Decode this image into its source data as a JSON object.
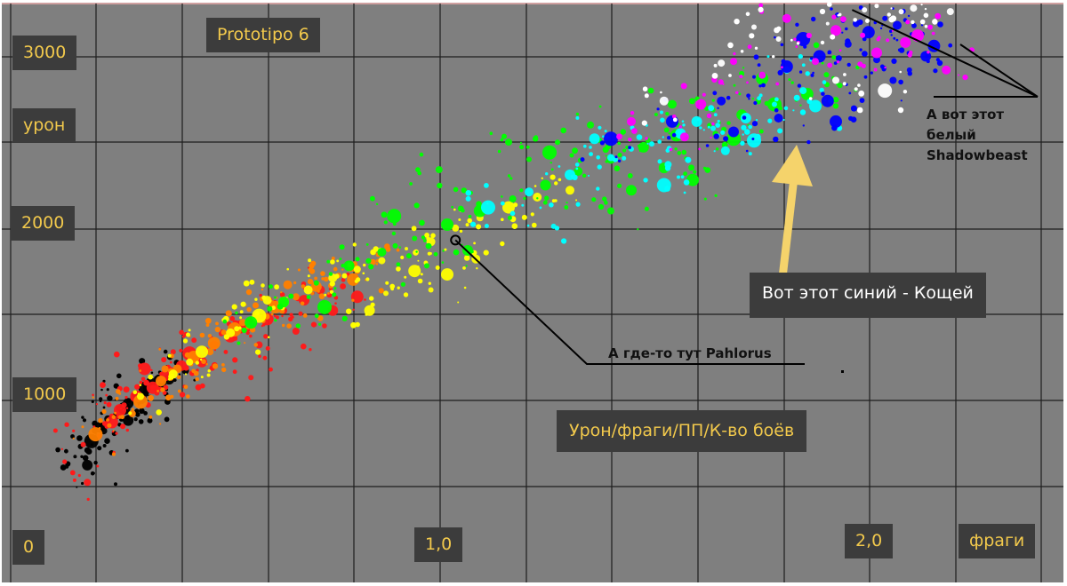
{
  "colors": {
    "background": "#7f7f7f",
    "grid": "#1e1e1e",
    "label_box": "#3c3c3c",
    "label_text": "#f2c94c",
    "arrow": "#f5d36b",
    "tier_black": "#000000",
    "tier_red": "#ff1a1a",
    "tier_orange": "#ff8000",
    "tier_yellow": "#ffff00",
    "tier_green": "#00ff00",
    "tier_cyan": "#00ffff",
    "tier_blue": "#0000ff",
    "tier_magenta": "#ff00ff",
    "tier_white": "#ffffff"
  },
  "chart_data": {
    "type": "scatter",
    "title": "Prototipo 6",
    "subtitle": "Урон/фраги/ПП/К-во боёв",
    "xlabel": "фраги",
    "ylabel": "урон",
    "x_tick_labels": [
      "0",
      "1,0",
      "2,0"
    ],
    "y_tick_labels": [
      "1000",
      "2000",
      "3000"
    ],
    "xlim": [
      0,
      2.35
    ],
    "ylim": [
      0,
      3300
    ],
    "grid": true,
    "point_size_meaning": "К-во боёв",
    "point_color_meaning": "ПП",
    "color_order": [
      "black",
      "red",
      "orange",
      "yellow",
      "green",
      "cyan",
      "blue",
      "magenta",
      "white"
    ],
    "series": [
      {
        "color": "black",
        "points": [
          [
            0.14,
            650
          ],
          [
            0.18,
            740
          ],
          [
            0.21,
            800
          ],
          [
            0.24,
            880
          ],
          [
            0.27,
            960
          ],
          [
            0.29,
            1010
          ],
          [
            0.22,
            870
          ],
          [
            0.31,
            1050
          ],
          [
            0.26,
            930
          ],
          [
            0.33,
            1080
          ],
          [
            0.37,
            1100
          ],
          [
            0.2,
            820
          ],
          [
            0.3,
            990
          ],
          [
            0.35,
            1060
          ],
          [
            0.41,
            1150
          ],
          [
            0.17,
            600
          ],
          [
            0.27,
            860
          ],
          [
            0.12,
            590
          ]
        ]
      },
      {
        "color": "red",
        "points": [
          [
            0.16,
            720
          ],
          [
            0.2,
            770
          ],
          [
            0.23,
            850
          ],
          [
            0.26,
            950
          ],
          [
            0.29,
            1000
          ],
          [
            0.33,
            1050
          ],
          [
            0.36,
            1120
          ],
          [
            0.4,
            1180
          ],
          [
            0.44,
            1230
          ],
          [
            0.48,
            1300
          ],
          [
            0.52,
            1350
          ],
          [
            0.56,
            1400
          ],
          [
            0.61,
            1450
          ],
          [
            0.65,
            1500
          ],
          [
            0.7,
            1560
          ],
          [
            0.74,
            1620
          ],
          [
            0.59,
            1300
          ],
          [
            0.57,
            1110
          ],
          [
            0.45,
            1200
          ],
          [
            0.34,
            1020
          ],
          [
            0.25,
            920
          ],
          [
            0.31,
            1160
          ],
          [
            0.68,
            1380
          ],
          [
            0.77,
            1500
          ],
          [
            0.83,
            1580
          ],
          [
            0.38,
            1260
          ],
          [
            0.17,
            500
          ],
          [
            0.42,
            1250
          ],
          [
            0.5,
            1380
          ]
        ]
      },
      {
        "color": "orange",
        "points": [
          [
            0.19,
            780
          ],
          [
            0.25,
            880
          ],
          [
            0.3,
            970
          ],
          [
            0.35,
            1090
          ],
          [
            0.39,
            1160
          ],
          [
            0.43,
            1230
          ],
          [
            0.48,
            1310
          ],
          [
            0.53,
            1390
          ],
          [
            0.58,
            1440
          ],
          [
            0.63,
            1520
          ],
          [
            0.68,
            1580
          ],
          [
            0.73,
            1640
          ],
          [
            0.78,
            1700
          ],
          [
            0.83,
            1740
          ],
          [
            0.88,
            1790
          ],
          [
            0.47,
            1260
          ],
          [
            0.62,
            1540
          ],
          [
            0.28,
            900
          ],
          [
            0.55,
            1430
          ],
          [
            0.72,
            1600
          ],
          [
            0.36,
            1160
          ],
          [
            0.66,
            1650
          ],
          [
            0.82,
            1680
          ]
        ]
      },
      {
        "color": "yellow",
        "points": [
          [
            0.3,
            1000
          ],
          [
            0.38,
            1130
          ],
          [
            0.45,
            1260
          ],
          [
            0.52,
            1370
          ],
          [
            0.59,
            1470
          ],
          [
            0.65,
            1550
          ],
          [
            0.71,
            1620
          ],
          [
            0.77,
            1690
          ],
          [
            0.83,
            1740
          ],
          [
            0.89,
            1790
          ],
          [
            0.95,
            1860
          ],
          [
            1.01,
            1900
          ],
          [
            1.07,
            1980
          ],
          [
            1.13,
            2040
          ],
          [
            1.2,
            2100
          ],
          [
            1.27,
            2160
          ],
          [
            1.05,
            1710
          ],
          [
            1.01,
            1620
          ],
          [
            0.9,
            1600
          ],
          [
            0.97,
            1730
          ],
          [
            0.42,
            1200
          ],
          [
            0.61,
            1560
          ],
          [
            1.12,
            1800
          ],
          [
            0.86,
            1500
          ],
          [
            1.35,
            2200
          ]
        ]
      },
      {
        "color": "green",
        "points": [
          [
            0.57,
            1430
          ],
          [
            0.65,
            1550
          ],
          [
            0.73,
            1660
          ],
          [
            0.81,
            1760
          ],
          [
            0.89,
            1840
          ],
          [
            0.97,
            1920
          ],
          [
            1.05,
            2000
          ],
          [
            1.13,
            2080
          ],
          [
            1.21,
            2150
          ],
          [
            1.29,
            2230
          ],
          [
            1.37,
            2310
          ],
          [
            1.45,
            2380
          ],
          [
            1.53,
            2450
          ],
          [
            1.61,
            2520
          ],
          [
            1.69,
            2570
          ],
          [
            1.77,
            2640
          ],
          [
            1.85,
            2700
          ],
          [
            1.93,
            2760
          ],
          [
            2.01,
            2810
          ],
          [
            1.3,
            2420
          ],
          [
            1.5,
            2200
          ],
          [
            1.65,
            2260
          ],
          [
            1.4,
            2580
          ],
          [
            1.03,
            2320
          ],
          [
            0.92,
            2050
          ],
          [
            1.2,
            2480
          ],
          [
            1.58,
            2330
          ],
          [
            1.75,
            2500
          ],
          [
            1.82,
            2850
          ],
          [
            1.1,
            1850
          ],
          [
            1.25,
            2380
          ],
          [
            1.0,
            1760
          ],
          [
            0.75,
            1520
          ],
          [
            1.45,
            2080
          ],
          [
            1.95,
            2950
          ],
          [
            1.6,
            2700
          ]
        ]
      },
      {
        "color": "cyan",
        "points": [
          [
            1.15,
            2100
          ],
          [
            1.25,
            2190
          ],
          [
            1.35,
            2290
          ],
          [
            1.45,
            2390
          ],
          [
            1.55,
            2470
          ],
          [
            1.62,
            2530
          ],
          [
            1.7,
            2560
          ],
          [
            1.78,
            2620
          ],
          [
            1.85,
            2700
          ],
          [
            1.92,
            2780
          ],
          [
            1.5,
            2440
          ],
          [
            1.66,
            2600
          ],
          [
            1.88,
            2900
          ],
          [
            1.31,
            1990
          ],
          [
            1.73,
            2430
          ],
          [
            1.41,
            2500
          ],
          [
            1.8,
            2490
          ],
          [
            1.59,
            2350
          ],
          [
            1.95,
            2690
          ],
          [
            1.58,
            2230
          ]
        ]
      },
      {
        "color": "blue",
        "points": [
          [
            1.45,
            2500
          ],
          [
            1.6,
            2600
          ],
          [
            1.72,
            2720
          ],
          [
            1.8,
            2860
          ],
          [
            1.88,
            2920
          ],
          [
            1.96,
            2980
          ],
          [
            2.03,
            3050
          ],
          [
            2.08,
            3120
          ],
          [
            2.12,
            3200
          ],
          [
            2.15,
            3160
          ],
          [
            2.22,
            2980
          ],
          [
            2.18,
            2900
          ],
          [
            2.1,
            2960
          ],
          [
            1.98,
            2720
          ],
          [
            2.0,
            2600
          ],
          [
            1.86,
            2620
          ],
          [
            2.14,
            2840
          ],
          [
            2.24,
            3040
          ],
          [
            2.05,
            3170
          ],
          [
            1.75,
            2540
          ],
          [
            1.92,
            3080
          ]
        ]
      },
      {
        "color": "magenta",
        "points": [
          [
            1.5,
            2600
          ],
          [
            1.67,
            2700
          ],
          [
            1.82,
            2870
          ],
          [
            1.95,
            2950
          ],
          [
            2.1,
            3000
          ],
          [
            2.17,
            3060
          ],
          [
            2.0,
            3130
          ],
          [
            1.88,
            3200
          ],
          [
            1.75,
            2950
          ],
          [
            2.27,
            2900
          ],
          [
            1.63,
            2510
          ],
          [
            2.2,
            3100
          ]
        ]
      },
      {
        "color": "white",
        "points": [
          [
            1.58,
            2720
          ],
          [
            1.72,
            2940
          ],
          [
            1.86,
            3080
          ],
          [
            1.98,
            3170
          ],
          [
            2.07,
            3250
          ],
          [
            2.16,
            3240
          ],
          [
            2.19,
            3260
          ],
          [
            2.28,
            3240
          ],
          [
            2.12,
            2780
          ],
          [
            2.0,
            2840
          ],
          [
            1.8,
            3150
          ]
        ]
      }
    ],
    "annotations": [
      {
        "text": "А где-то тут Pahlorus",
        "target": [
          1.07,
          1910
        ]
      },
      {
        "text": "Вот этот синий - Кощей",
        "target": [
          1.84,
          2720
        ]
      },
      {
        "text": "А вот этот белый Shadowbeast",
        "target": [
          2.04,
          3250
        ]
      }
    ]
  },
  "annotations_text": {
    "pahlorus": "А где-то тут Pahlorus",
    "koschei": "Вот этот синий - Кощей",
    "shadowbeast_line1": "А вот этот",
    "shadowbeast_line2": "белый",
    "shadowbeast_line3": "Shadowbeast"
  }
}
